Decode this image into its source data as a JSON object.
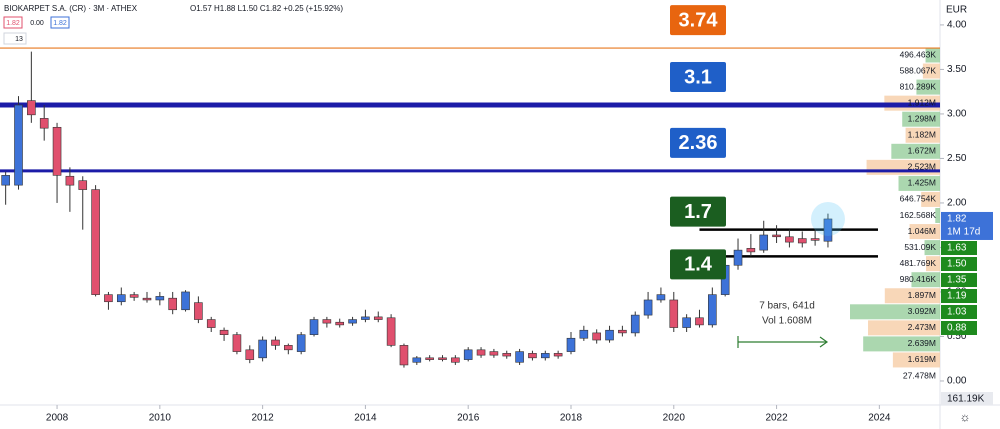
{
  "chart_data": {
    "type": "candlestick",
    "title": "BIOKARPET S.A. (CR) · 3M · ATHEX",
    "ohlc_header": "O1.57 H1.88 L1.50 C1.82 +0.25 (+15.92%)",
    "bid": "1.82",
    "spread": "0.00",
    "ask": "1.82",
    "indicator_count": "13",
    "currency": "EUR",
    "up_color": "#3d72d8",
    "down_color": "#e0506e",
    "x": [
      2007.0,
      2007.25,
      2007.5,
      2007.75,
      2008.0,
      2008.25,
      2008.5,
      2008.75,
      2009.0,
      2009.25,
      2009.5,
      2009.75,
      2010.0,
      2010.25,
      2010.5,
      2010.75,
      2011.0,
      2011.25,
      2011.5,
      2011.75,
      2012.0,
      2012.25,
      2012.5,
      2012.75,
      2013.0,
      2013.25,
      2013.5,
      2013.75,
      2014.0,
      2014.25,
      2014.5,
      2014.75,
      2015.0,
      2015.25,
      2015.5,
      2015.75,
      2016.0,
      2016.25,
      2016.5,
      2016.75,
      2017.0,
      2017.25,
      2017.5,
      2017.75,
      2018.0,
      2018.25,
      2018.5,
      2018.75,
      2019.0,
      2019.25,
      2019.5,
      2019.75,
      2020.0,
      2020.25,
      2020.5,
      2020.75,
      2021.0,
      2021.25,
      2021.5,
      2021.75,
      2022.0,
      2022.25,
      2022.5,
      2022.75,
      2023.0
    ],
    "open": [
      2.2,
      2.2,
      3.15,
      2.95,
      2.85,
      2.3,
      2.25,
      2.15,
      0.97,
      0.89,
      0.97,
      0.93,
      0.91,
      0.93,
      0.8,
      0.88,
      0.69,
      0.57,
      0.52,
      0.35,
      0.26,
      0.46,
      0.4,
      0.33,
      0.52,
      0.69,
      0.66,
      0.65,
      0.69,
      0.72,
      0.71,
      0.4,
      0.21,
      0.26,
      0.26,
      0.26,
      0.24,
      0.35,
      0.33,
      0.31,
      0.21,
      0.31,
      0.26,
      0.31,
      0.33,
      0.48,
      0.54,
      0.46,
      0.57,
      0.54,
      0.74,
      0.91,
      0.91,
      0.6,
      0.71,
      0.63,
      0.97,
      1.3,
      1.49,
      1.47,
      1.64,
      1.62,
      1.6,
      1.6,
      1.57
    ],
    "high": [
      2.35,
      3.2,
      3.7,
      3.1,
      2.9,
      2.4,
      2.3,
      2.2,
      1.0,
      1.05,
      1.0,
      1.0,
      1.0,
      1.0,
      1.02,
      0.95,
      0.72,
      0.6,
      0.55,
      0.4,
      0.5,
      0.5,
      0.42,
      0.55,
      0.72,
      0.72,
      0.7,
      0.72,
      0.8,
      0.78,
      0.75,
      0.42,
      0.28,
      0.29,
      0.29,
      0.29,
      0.38,
      0.38,
      0.36,
      0.34,
      0.36,
      0.34,
      0.34,
      0.34,
      0.55,
      0.62,
      0.58,
      0.62,
      0.62,
      0.78,
      1.0,
      1.05,
      1.0,
      0.75,
      0.8,
      1.05,
      1.35,
      1.6,
      1.65,
      1.8,
      1.75,
      1.7,
      1.68,
      1.7,
      1.88
    ],
    "low": [
      1.98,
      2.15,
      2.9,
      2.7,
      2.0,
      1.9,
      1.7,
      0.95,
      0.8,
      0.85,
      0.9,
      0.88,
      0.85,
      0.75,
      0.78,
      0.65,
      0.55,
      0.45,
      0.3,
      0.2,
      0.22,
      0.35,
      0.3,
      0.3,
      0.5,
      0.6,
      0.6,
      0.62,
      0.66,
      0.66,
      0.38,
      0.15,
      0.18,
      0.22,
      0.22,
      0.18,
      0.22,
      0.26,
      0.26,
      0.25,
      0.18,
      0.23,
      0.23,
      0.25,
      0.3,
      0.45,
      0.42,
      0.43,
      0.5,
      0.5,
      0.7,
      0.88,
      0.55,
      0.55,
      0.6,
      0.6,
      0.95,
      1.25,
      1.4,
      1.44,
      1.55,
      1.5,
      1.5,
      1.52,
      1.5
    ],
    "close": [
      2.31,
      3.1,
      2.99,
      2.84,
      2.31,
      2.2,
      2.15,
      0.97,
      0.89,
      0.97,
      0.94,
      0.91,
      0.95,
      0.8,
      1.0,
      0.69,
      0.6,
      0.52,
      0.33,
      0.24,
      0.46,
      0.4,
      0.35,
      0.52,
      0.69,
      0.65,
      0.63,
      0.69,
      0.72,
      0.69,
      0.4,
      0.18,
      0.26,
      0.24,
      0.24,
      0.21,
      0.35,
      0.29,
      0.29,
      0.28,
      0.33,
      0.26,
      0.31,
      0.28,
      0.48,
      0.57,
      0.46,
      0.57,
      0.54,
      0.74,
      0.91,
      0.97,
      0.6,
      0.71,
      0.63,
      0.97,
      1.3,
      1.47,
      1.45,
      1.64,
      1.62,
      1.56,
      1.55,
      1.58,
      1.82
    ],
    "xlim": [
      2006.89,
      2025.18
    ],
    "ylim": [
      -0.27,
      4.28
    ],
    "xticks": [
      2008,
      2010,
      2012,
      2014,
      2016,
      2018,
      2020,
      2022,
      2024
    ],
    "yticks": [
      {
        "value": 0,
        "label": "0.00"
      },
      {
        "value": 0.5,
        "label": "0.50"
      },
      {
        "value": 1,
        "label": "1.00"
      },
      {
        "value": 1.5,
        "label": "1.50"
      },
      {
        "value": 2,
        "label": "2.00"
      },
      {
        "value": 2.5,
        "label": "2.50"
      },
      {
        "value": 3,
        "label": "3.00"
      },
      {
        "value": 3.5,
        "label": "3.50"
      },
      {
        "value": 4,
        "label": "4.00"
      }
    ],
    "levels": [
      {
        "value": 3.74,
        "line_color": "#e8781f",
        "box_color": "#e8650f"
      },
      {
        "value": 3.1,
        "line_color": "#1c1ca8",
        "box_color": "#1f5fc8",
        "from": 2006.89
      },
      {
        "value": 2.36,
        "line_color": "#1c1ca8",
        "box_color": "#1f5fc8",
        "from": 2006.89
      },
      {
        "value": 1.7,
        "line_color": "#000000",
        "box_color": "#1b5e20",
        "from": 2020.5
      },
      {
        "value": 1.4,
        "line_color": "#000000",
        "box_color": "#1b5e20",
        "from": 2020.5
      }
    ],
    "volume_profile": [
      {
        "value": 496463,
        "label": "496.463K"
      },
      {
        "value": 588067,
        "label": "588.067K"
      },
      {
        "value": 810289,
        "label": "810.289K"
      },
      {
        "value": 1912000,
        "label": "1.912M"
      },
      {
        "value": 1298000,
        "label": "1.298M"
      },
      {
        "value": 1182000,
        "label": "1.182M"
      },
      {
        "value": 1672000,
        "label": "1.672M"
      },
      {
        "value": 2523000,
        "label": "2.523M"
      },
      {
        "value": 1425000,
        "label": "1.425M"
      },
      {
        "value": 646754,
        "label": "646.754K"
      },
      {
        "value": 162568,
        "label": "162.568K"
      },
      {
        "value": 1046000,
        "label": "1.046M"
      },
      {
        "value": 531090,
        "label": "531.09K"
      },
      {
        "value": 481769,
        "label": "481.769K"
      },
      {
        "value": 980416,
        "label": "980.416K"
      },
      {
        "value": 1897000,
        "label": "1.897M"
      },
      {
        "value": 3092000,
        "label": "3.092M"
      },
      {
        "value": 2473000,
        "label": "2.473M"
      },
      {
        "value": 2639000,
        "label": "2.639M"
      },
      {
        "value": 1619000,
        "label": "1.619M"
      },
      {
        "value": 27478000,
        "label": "27.478M"
      }
    ],
    "last_price": 1.82,
    "countdown": "1M 17d",
    "ma_labels": [
      1.63,
      {
        "value": 1.5,
        "label": "1.50"
      },
      1.35,
      1.19,
      1.03,
      0.88
    ],
    "volume_last": {
      "value": 161190,
      "label": "161.19K"
    },
    "annotation": [
      "7 bars, 641d",
      "Vol 1.608M"
    ]
  }
}
